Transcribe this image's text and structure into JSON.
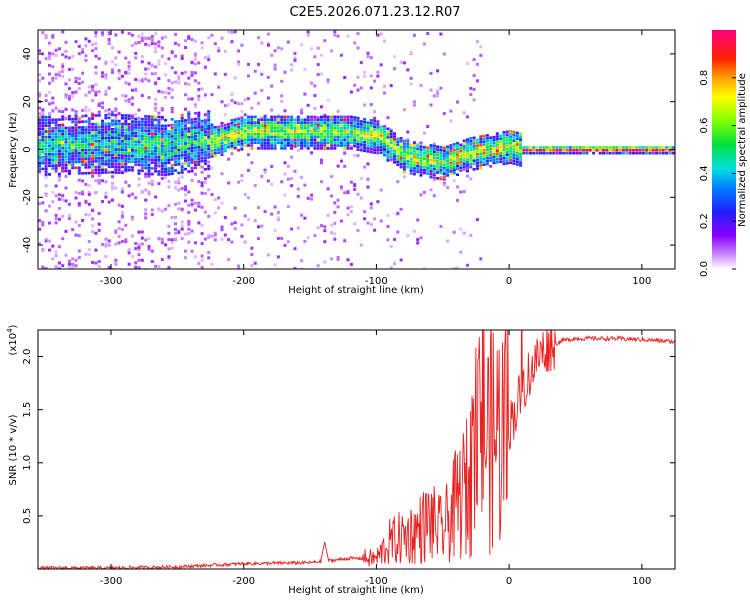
{
  "chart_data": [
    {
      "type": "heatmap",
      "title": "C2E5.2026.071.23.12.R07",
      "xlabel": "Height of straight line (km)",
      "ylabel": "Frequency (Hz)",
      "xlim": [
        -355,
        125
      ],
      "ylim": [
        -50,
        50
      ],
      "x_ticks": [
        -300,
        -200,
        -100,
        0,
        100
      ],
      "y_ticks": [
        -40,
        -20,
        0,
        20,
        40
      ],
      "colorbar": {
        "label": "Normalized spectral amplitude",
        "range": [
          0,
          1
        ],
        "ticks": [
          0.0,
          0.2,
          0.4,
          0.6,
          0.8
        ],
        "tick_labels": [
          "0.0",
          "0.2",
          "0.4",
          "0.6",
          "0.8"
        ]
      },
      "ridge": {
        "x": [
          -355,
          -300,
          -260,
          -220,
          -200,
          -150,
          -120,
          -100,
          -80,
          -60,
          -50,
          -40,
          -30,
          -20,
          -10,
          0,
          10,
          125
        ],
        "y": [
          2,
          3,
          2,
          5,
          8,
          8,
          8,
          6,
          -2,
          -4,
          -5,
          -3,
          -1,
          0,
          1,
          2,
          0.5,
          0.5
        ]
      }
    },
    {
      "type": "line",
      "xlabel": "Height of straight line (km)",
      "ylabel": "SNR (10 * v/v)",
      "y_multiplier": "(x10",
      "y_multiplier_exp": "4",
      "y_multiplier_close": ")",
      "xlim": [
        -355,
        125
      ],
      "ylim": [
        0,
        2.25
      ],
      "x_ticks": [
        -300,
        -200,
        -100,
        0,
        100
      ],
      "y_ticks": [
        0.5,
        1.0,
        1.5,
        2.0
      ],
      "y_tick_labels": [
        "0.5",
        "1.0",
        "1.5",
        "2.0"
      ],
      "series": [
        {
          "name": "SNR",
          "color": "#e82020",
          "x": [
            -355,
            -300,
            -250,
            -200,
            -150,
            -120,
            -100,
            -90,
            -80,
            -70,
            -60,
            -50,
            -40,
            -30,
            -25,
            -20,
            -15,
            -10,
            -5,
            0,
            5,
            10,
            15,
            20,
            25,
            30,
            35,
            40,
            50,
            60,
            80,
            100,
            125
          ],
          "y": [
            0.01,
            0.01,
            0.02,
            0.05,
            0.06,
            0.1,
            0.1,
            0.25,
            0.3,
            0.35,
            0.45,
            0.35,
            0.6,
            0.8,
            1.1,
            1.5,
            1.2,
            1.3,
            1.3,
            1.35,
            1.5,
            1.7,
            1.85,
            1.95,
            2.05,
            2.1,
            2.12,
            2.15,
            2.17,
            2.17,
            2.17,
            2.16,
            2.14
          ]
        }
      ]
    }
  ]
}
